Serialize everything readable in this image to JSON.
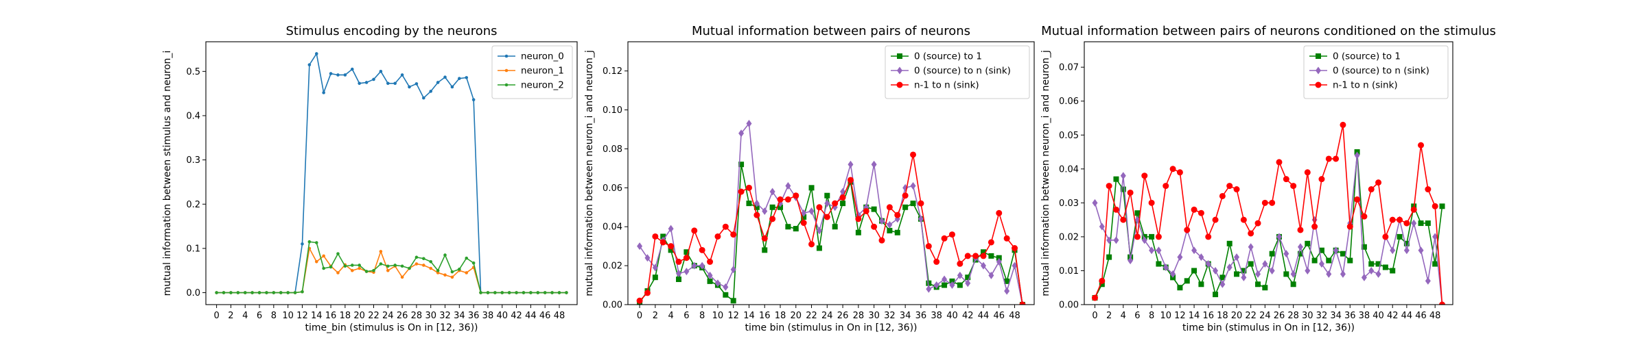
{
  "chart_data": [
    {
      "type": "line",
      "title": "Stimulus encoding by the neurons",
      "xlabel": "time_bin (stimulus is On in [12, 36))",
      "ylabel": "mutual information between stimulus and neuron_i",
      "xlim": [
        -1.5,
        50.5
      ],
      "ylim": [
        -0.027,
        0.567
      ],
      "xticks": [
        0,
        2,
        4,
        6,
        8,
        10,
        12,
        14,
        16,
        18,
        20,
        22,
        24,
        26,
        28,
        30,
        32,
        34,
        36,
        38,
        40,
        42,
        44,
        46,
        48
      ],
      "yticks": [
        0.0,
        0.1,
        0.2,
        0.3,
        0.4,
        0.5
      ],
      "ytick_decimals": 1,
      "grid": false,
      "legend": "top-right",
      "x": [
        0,
        1,
        2,
        3,
        4,
        5,
        6,
        7,
        8,
        9,
        10,
        11,
        12,
        13,
        14,
        15,
        16,
        17,
        18,
        19,
        20,
        21,
        22,
        23,
        24,
        25,
        26,
        27,
        28,
        29,
        30,
        31,
        32,
        33,
        34,
        35,
        36,
        37,
        38,
        39,
        40,
        41,
        42,
        43,
        44,
        45,
        46,
        47,
        48,
        49
      ],
      "series": [
        {
          "name": "neuron_0",
          "color": "#1f77b4",
          "marker": "point",
          "values": [
            0,
            0,
            0,
            0,
            0,
            0,
            0,
            0,
            0,
            0,
            0,
            0,
            0.11,
            0.515,
            0.54,
            0.452,
            0.495,
            0.492,
            0.492,
            0.505,
            0.473,
            0.475,
            0.482,
            0.5,
            0.473,
            0.473,
            0.492,
            0.465,
            0.472,
            0.44,
            0.455,
            0.475,
            0.487,
            0.465,
            0.484,
            0.486,
            0.436,
            0,
            0,
            0,
            0,
            0,
            0,
            0,
            0,
            0,
            0,
            0,
            0,
            0
          ]
        },
        {
          "name": "neuron_1",
          "color": "#ff7f0e",
          "marker": "point",
          "values": [
            0,
            0,
            0,
            0,
            0,
            0,
            0,
            0,
            0,
            0,
            0,
            0,
            0.002,
            0.1,
            0.07,
            0.083,
            0.06,
            0.045,
            0.063,
            0.05,
            0.055,
            0.048,
            0.046,
            0.093,
            0.05,
            0.06,
            0.035,
            0.055,
            0.065,
            0.062,
            0.055,
            0.045,
            0.04,
            0.035,
            0.05,
            0.045,
            0.057,
            0,
            0,
            0,
            0,
            0,
            0,
            0,
            0,
            0,
            0,
            0,
            0,
            0
          ]
        },
        {
          "name": "neuron_2",
          "color": "#2ca02c",
          "marker": "point",
          "values": [
            0,
            0,
            0,
            0,
            0,
            0,
            0,
            0,
            0,
            0,
            0,
            0,
            0.002,
            0.115,
            0.113,
            0.055,
            0.058,
            0.088,
            0.06,
            0.062,
            0.062,
            0.048,
            0.05,
            0.065,
            0.06,
            0.062,
            0.06,
            0.055,
            0.08,
            0.077,
            0.07,
            0.05,
            0.085,
            0.047,
            0.053,
            0.078,
            0.067,
            0,
            0,
            0,
            0,
            0,
            0,
            0,
            0,
            0,
            0,
            0,
            0,
            0
          ]
        }
      ]
    },
    {
      "type": "line",
      "title": "Mutual information between pairs of neurons",
      "xlabel": "time bin (stimulus in On in [12, 36))",
      "ylabel": "mutual information between neuron_i and neuron_j",
      "xlim": [
        -1.5,
        50.5
      ],
      "ylim": [
        0,
        0.135
      ],
      "xticks": [
        0,
        2,
        4,
        6,
        8,
        10,
        12,
        14,
        16,
        18,
        20,
        22,
        24,
        26,
        28,
        30,
        32,
        34,
        36,
        38,
        40,
        42,
        44,
        46,
        48
      ],
      "yticks": [
        0.0,
        0.02,
        0.04,
        0.06,
        0.08,
        0.1,
        0.12
      ],
      "ytick_decimals": 2,
      "grid": false,
      "legend": "top-right",
      "x": [
        0,
        1,
        2,
        3,
        4,
        5,
        6,
        7,
        8,
        9,
        10,
        11,
        12,
        13,
        14,
        15,
        16,
        17,
        18,
        19,
        20,
        21,
        22,
        23,
        24,
        25,
        26,
        27,
        28,
        29,
        30,
        31,
        32,
        33,
        34,
        35,
        36,
        37,
        38,
        39,
        40,
        41,
        42,
        43,
        44,
        45,
        46,
        47,
        48,
        49
      ],
      "series": [
        {
          "name": "0 (source) to 1",
          "color": "#008000",
          "marker": "square",
          "values": [
            0.001,
            0.007,
            0.014,
            0.035,
            0.028,
            0.013,
            0.027,
            0.02,
            0.019,
            0.012,
            0.01,
            0.005,
            0.002,
            0.072,
            0.052,
            0.05,
            0.028,
            0.05,
            0.05,
            0.04,
            0.039,
            0.045,
            0.06,
            0.029,
            0.056,
            0.04,
            0.052,
            0.063,
            0.037,
            0.05,
            0.049,
            0.043,
            0.038,
            0.037,
            0.05,
            0.052,
            0.044,
            0.011,
            0.009,
            0.01,
            0.012,
            0.01,
            0.014,
            0.023,
            0.027,
            0.025,
            0.024,
            0.012,
            0.028,
            0.0
          ]
        },
        {
          "name": "0 (source) to n (sink)",
          "color": "#9467bd",
          "marker": "diamond",
          "values": [
            0.03,
            0.024,
            0.019,
            0.033,
            0.039,
            0.016,
            0.017,
            0.02,
            0.02,
            0.015,
            0.011,
            0.009,
            0.018,
            0.088,
            0.093,
            0.052,
            0.048,
            0.058,
            0.052,
            0.061,
            0.055,
            0.047,
            0.048,
            0.038,
            0.052,
            0.05,
            0.058,
            0.072,
            0.046,
            0.05,
            0.072,
            0.043,
            0.041,
            0.044,
            0.06,
            0.061,
            0.044,
            0.008,
            0.01,
            0.013,
            0.01,
            0.015,
            0.011,
            0.024,
            0.02,
            0.015,
            0.022,
            0.007,
            0.02,
            0.0
          ]
        },
        {
          "name": "n-1 to n (sink)",
          "color": "#ff0000",
          "marker": "circle",
          "values": [
            0.002,
            0.006,
            0.035,
            0.032,
            0.03,
            0.022,
            0.024,
            0.038,
            0.028,
            0.022,
            0.035,
            0.04,
            0.036,
            0.058,
            0.06,
            0.046,
            0.034,
            0.044,
            0.054,
            0.054,
            0.056,
            0.042,
            0.031,
            0.05,
            0.045,
            0.052,
            0.055,
            0.064,
            0.044,
            0.048,
            0.04,
            0.033,
            0.05,
            0.046,
            0.056,
            0.077,
            0.052,
            0.03,
            0.022,
            0.034,
            0.036,
            0.021,
            0.025,
            0.025,
            0.025,
            0.032,
            0.047,
            0.034,
            0.029,
            0.0
          ]
        }
      ]
    },
    {
      "type": "line",
      "title": "Mutual information between pairs of neurons conditioned on the stimulus",
      "xlabel": "time bin (stimulus in On in [12, 36))",
      "ylabel": "mutual information between neuron_i and neuron_j",
      "xlim": [
        -1.5,
        50.5
      ],
      "ylim": [
        0,
        0.0775
      ],
      "xticks": [
        0,
        2,
        4,
        6,
        8,
        10,
        12,
        14,
        16,
        18,
        20,
        22,
        24,
        26,
        28,
        30,
        32,
        34,
        36,
        38,
        40,
        42,
        44,
        46,
        48
      ],
      "yticks": [
        0.0,
        0.01,
        0.02,
        0.03,
        0.04,
        0.05,
        0.06,
        0.07
      ],
      "ytick_decimals": 2,
      "grid": false,
      "legend": "top-right",
      "x": [
        0,
        1,
        2,
        3,
        4,
        5,
        6,
        7,
        8,
        9,
        10,
        11,
        12,
        13,
        14,
        15,
        16,
        17,
        18,
        19,
        20,
        21,
        22,
        23,
        24,
        25,
        26,
        27,
        28,
        29,
        30,
        31,
        32,
        33,
        34,
        35,
        36,
        37,
        38,
        39,
        40,
        41,
        42,
        43,
        44,
        45,
        46,
        47,
        48,
        49
      ],
      "series": [
        {
          "name": "0 (source) to 1",
          "color": "#008000",
          "marker": "square",
          "values": [
            0.002,
            0.006,
            0.014,
            0.037,
            0.034,
            0.014,
            0.027,
            0.02,
            0.02,
            0.012,
            0.011,
            0.008,
            0.005,
            0.007,
            0.01,
            0.006,
            0.012,
            0.003,
            0.008,
            0.018,
            0.009,
            0.01,
            0.012,
            0.006,
            0.005,
            0.015,
            0.02,
            0.009,
            0.006,
            0.015,
            0.018,
            0.013,
            0.016,
            0.013,
            0.016,
            0.015,
            0.013,
            0.045,
            0.017,
            0.012,
            0.012,
            0.011,
            0.01,
            0.02,
            0.018,
            0.029,
            0.024,
            0.024,
            0.012,
            0.029
          ]
        },
        {
          "name": "0 (source) to n (sink)",
          "color": "#9467bd",
          "marker": "diamond",
          "values": [
            0.03,
            0.023,
            0.019,
            0.019,
            0.038,
            0.013,
            0.025,
            0.019,
            0.016,
            0.016,
            0.011,
            0.009,
            0.014,
            0.022,
            0.016,
            0.014,
            0.012,
            0.01,
            0.006,
            0.011,
            0.014,
            0.008,
            0.017,
            0.009,
            0.012,
            0.01,
            0.02,
            0.015,
            0.009,
            0.017,
            0.01,
            0.025,
            0.012,
            0.009,
            0.016,
            0.009,
            0.024,
            0.044,
            0.008,
            0.01,
            0.009,
            0.02,
            0.016,
            0.025,
            0.016,
            0.024,
            0.016,
            0.007,
            0.02,
            0.0
          ]
        },
        {
          "name": "n-1 to n (sink)",
          "color": "#ff0000",
          "marker": "circle",
          "values": [
            0.002,
            0.007,
            0.035,
            0.028,
            0.025,
            0.033,
            0.02,
            0.038,
            0.03,
            0.02,
            0.035,
            0.04,
            0.039,
            0.022,
            0.028,
            0.027,
            0.02,
            0.025,
            0.032,
            0.035,
            0.034,
            0.025,
            0.021,
            0.024,
            0.03,
            0.03,
            0.042,
            0.037,
            0.035,
            0.022,
            0.039,
            0.023,
            0.037,
            0.043,
            0.043,
            0.053,
            0.023,
            0.031,
            0.026,
            0.034,
            0.036,
            0.02,
            0.025,
            0.025,
            0.024,
            0.028,
            0.047,
            0.034,
            0.029,
            0.0
          ]
        }
      ]
    }
  ]
}
